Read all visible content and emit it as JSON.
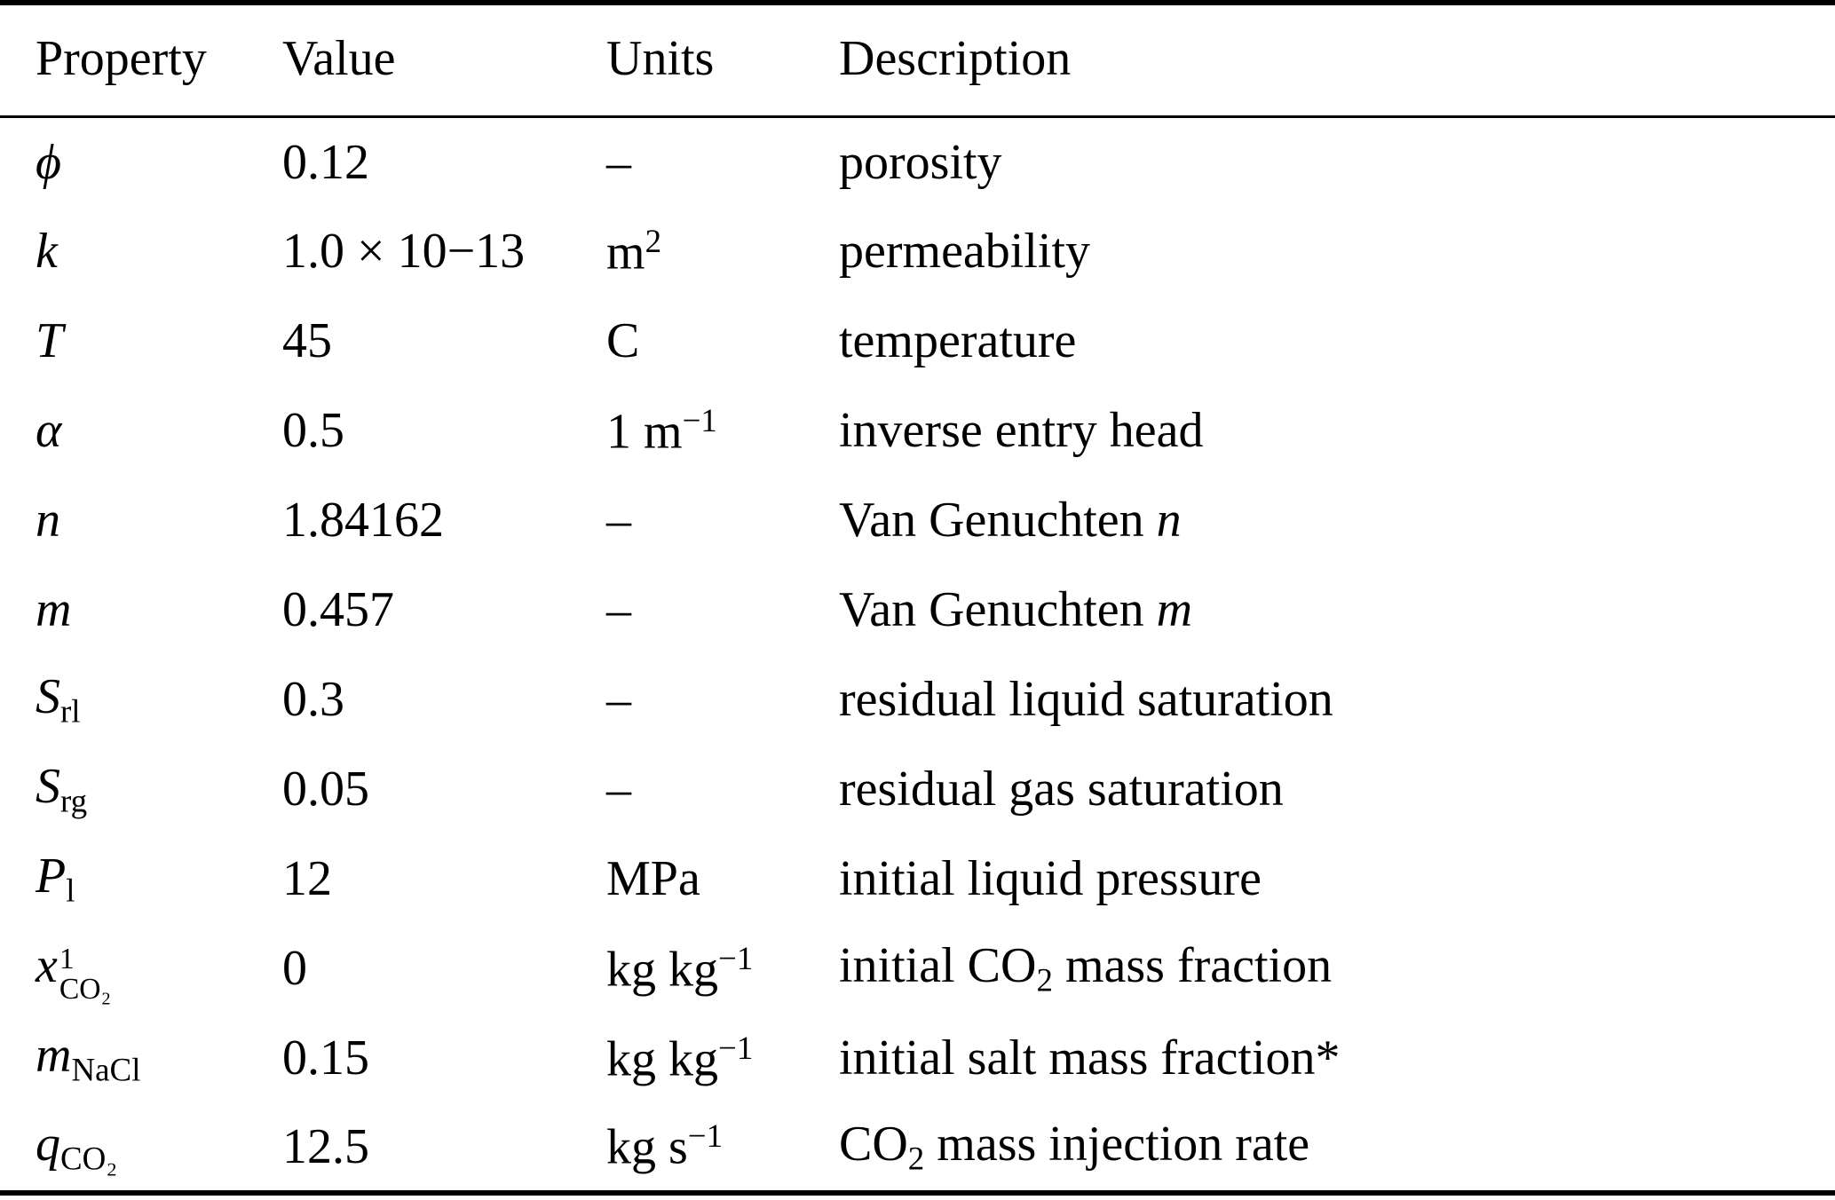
{
  "page": {
    "background_color": "#ffffff",
    "text_color": "#000000"
  },
  "table": {
    "headers": [
      "Property",
      "Value",
      "Units",
      "Description"
    ],
    "rows": [
      {
        "property": [
          {
            "t": "ϕ",
            "f": "i"
          }
        ],
        "value": "0.12",
        "units": [
          {
            "t": "–"
          }
        ],
        "description": [
          {
            "t": "porosity"
          }
        ]
      },
      {
        "property": [
          {
            "t": "k",
            "f": "i"
          }
        ],
        "value": "1.0 × 10−13",
        "units": [
          {
            "t": "m"
          },
          {
            "t": "2",
            "f": "sup"
          }
        ],
        "description": [
          {
            "t": "permeability"
          }
        ]
      },
      {
        "property": [
          {
            "t": "T",
            "f": "i"
          }
        ],
        "value": "45",
        "units": [
          {
            "t": "C"
          }
        ],
        "description": [
          {
            "t": "temperature"
          }
        ]
      },
      {
        "property": [
          {
            "t": "α",
            "f": "i"
          }
        ],
        "value": "0.5",
        "units": [
          {
            "t": "1 m"
          },
          {
            "t": "−1",
            "f": "sup"
          }
        ],
        "description": [
          {
            "t": "inverse entry head"
          }
        ]
      },
      {
        "property": [
          {
            "t": "n",
            "f": "i"
          }
        ],
        "value": "1.84162",
        "units": [
          {
            "t": "–"
          }
        ],
        "description": [
          {
            "t": "Van Genuchten "
          },
          {
            "t": "n",
            "f": "i"
          }
        ]
      },
      {
        "property": [
          {
            "t": "m",
            "f": "i"
          }
        ],
        "value": "0.457",
        "units": [
          {
            "t": "–"
          }
        ],
        "description": [
          {
            "t": "Van Genuchten "
          },
          {
            "t": "m",
            "f": "i"
          }
        ]
      },
      {
        "property": [
          {
            "t": "S",
            "f": "i"
          },
          {
            "t": "rl",
            "f": "sub"
          }
        ],
        "value": "0.3",
        "units": [
          {
            "t": "–"
          }
        ],
        "description": [
          {
            "t": "residual liquid saturation"
          }
        ]
      },
      {
        "property": [
          {
            "t": "S",
            "f": "i"
          },
          {
            "t": "rg",
            "f": "sub"
          }
        ],
        "value": "0.05",
        "units": [
          {
            "t": "–"
          }
        ],
        "description": [
          {
            "t": "residual gas saturation"
          }
        ]
      },
      {
        "property": [
          {
            "t": "P",
            "f": "i"
          },
          {
            "t": "l",
            "f": "sub"
          }
        ],
        "value": "12",
        "units": [
          {
            "t": "MPa"
          }
        ],
        "description": [
          {
            "t": "initial liquid pressure"
          }
        ]
      },
      {
        "property": [
          {
            "t": "x",
            "f": "i"
          },
          {
            "f": "stack",
            "sup": "1",
            "sub": "CO₂"
          }
        ],
        "value": "0",
        "units": [
          {
            "t": "kg kg"
          },
          {
            "t": "−1",
            "f": "sup"
          }
        ],
        "description": [
          {
            "t": "initial CO"
          },
          {
            "t": "2",
            "f": "sub"
          },
          {
            "t": " mass fraction"
          }
        ]
      },
      {
        "property": [
          {
            "t": "m",
            "f": "i"
          },
          {
            "t": "NaCl",
            "f": "sub"
          }
        ],
        "value": "0.15",
        "units": [
          {
            "t": "kg kg"
          },
          {
            "t": "−1",
            "f": "sup"
          }
        ],
        "description": [
          {
            "t": "initial salt mass fraction*"
          }
        ]
      },
      {
        "property": [
          {
            "t": "q",
            "f": "i"
          },
          {
            "t": "CO₂",
            "f": "sub"
          }
        ],
        "value": "12.5",
        "units": [
          {
            "t": "kg s"
          },
          {
            "t": "−1",
            "f": "sup"
          }
        ],
        "description": [
          {
            "t": "CO"
          },
          {
            "t": "2",
            "f": "sub"
          },
          {
            "t": " mass injection rate"
          }
        ]
      }
    ]
  }
}
